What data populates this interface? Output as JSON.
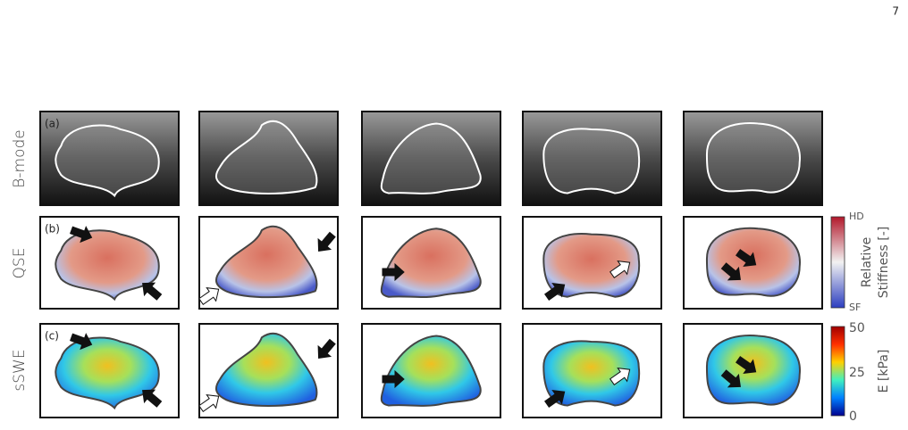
{
  "page_number": "7",
  "rows": [
    {
      "label": "B-mode",
      "panel": "(a)"
    },
    {
      "label": "QSE",
      "panel": "(b)"
    },
    {
      "label": "sSWE",
      "panel": "(c)"
    }
  ],
  "qse_colorbar": {
    "top": "HD",
    "bottom": "SF",
    "label": [
      "Relative",
      "Stiffness [-]"
    ]
  },
  "sswe_colorbar": {
    "ticks": [
      "50",
      "25",
      "0"
    ],
    "label": "E [kPa]"
  }
}
